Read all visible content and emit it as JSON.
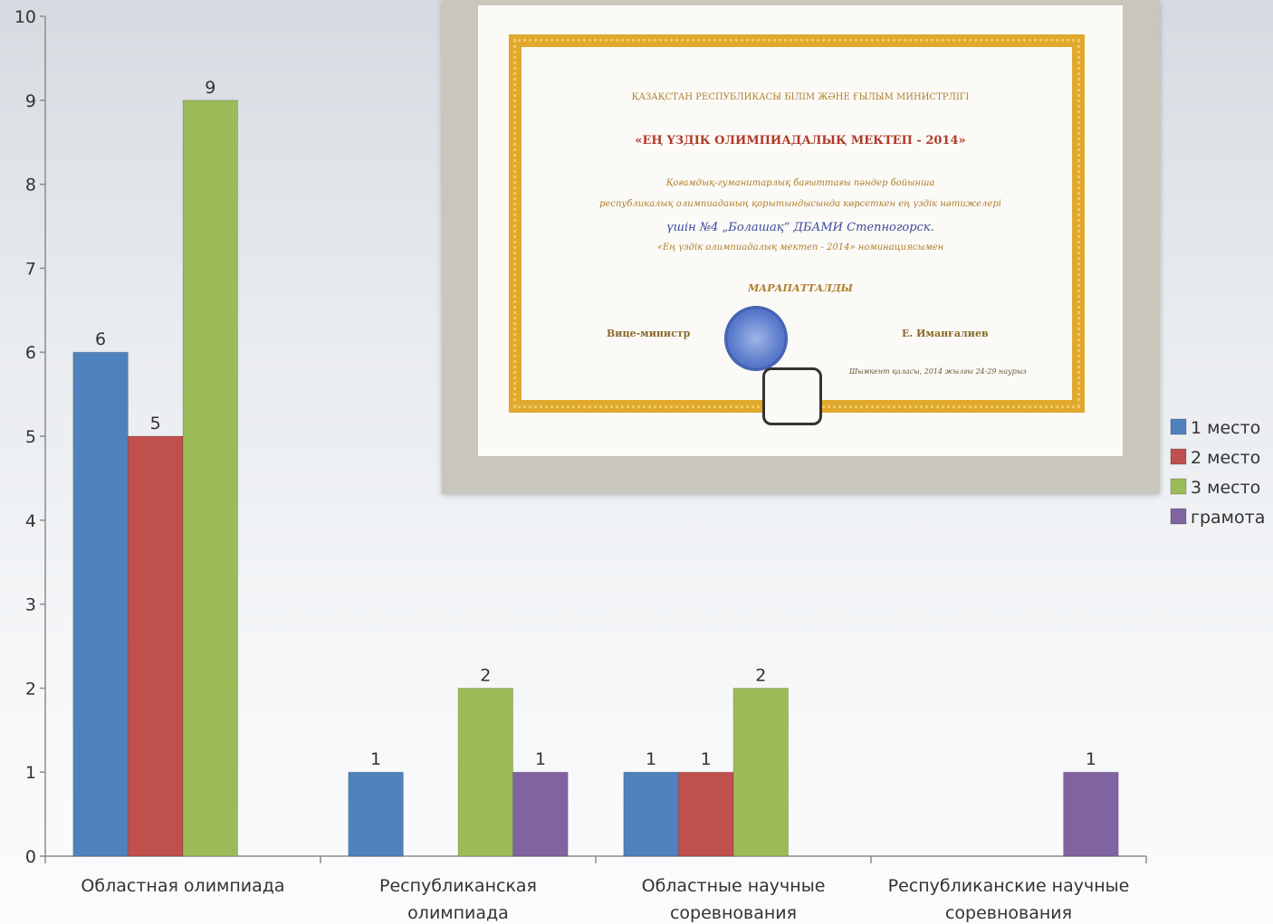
{
  "chart_data": {
    "type": "bar",
    "categories": [
      "Областная олимпиада",
      "Республиканская олимпиада",
      "Областные научные соревнования",
      "Республиканские научные соревнования"
    ],
    "category_lines": [
      [
        "Областная олимпиада"
      ],
      [
        "Республиканская",
        "олимпиада"
      ],
      [
        "Областные научные",
        "соревнования"
      ],
      [
        "Республиканские научные",
        "соревнования"
      ]
    ],
    "series": [
      {
        "name": "1 место",
        "color": "#4f81bd",
        "values": [
          6,
          1,
          1,
          0
        ]
      },
      {
        "name": "2 место",
        "color": "#c0504d",
        "values": [
          5,
          0,
          1,
          0
        ]
      },
      {
        "name": "3 место",
        "color": "#9bbb59",
        "values": [
          9,
          2,
          2,
          0
        ]
      },
      {
        "name": "грамота",
        "color": "#8064a2",
        "values": [
          0,
          1,
          0,
          1
        ]
      }
    ],
    "ylim": [
      0,
      10
    ],
    "yticks": [
      0,
      1,
      2,
      3,
      4,
      5,
      6,
      7,
      8,
      9,
      10
    ],
    "grid": false,
    "legend_position": "right",
    "title": "",
    "xlabel": "",
    "ylabel": ""
  },
  "certificate": {
    "ministry": "ҚАЗАҚСТАН РЕСПУБЛИКАСЫ БІЛІМ ЖӘНЕ ҒЫЛЫМ МИНИСТРЛІГІ",
    "title": "«ЕҢ ҮЗДІК ОЛИМПИАДАЛЫҚ МЕКТЕП - 2014»",
    "line1": "Қоғамдық-гуманитарлық бағыттағы пәндер бойынша",
    "line2": "республикалық олимпиаданың қорытындысында көрсеткен ең үздік нәтижелері",
    "line3": "үшін №4 „Болашақ“ ДБАМИ Степногорск.",
    "line4": "«Ең үздік олимпиадалық мектеп - 2014» номинациясымен",
    "awarded": "МАРАПАТТАЛДЫ",
    "vice_minister": "Вице-министр",
    "signatory": "Е. Иманғалиев",
    "city_date": "Шымкент қаласы, 2014 жылғы 24-29 наурыз"
  }
}
